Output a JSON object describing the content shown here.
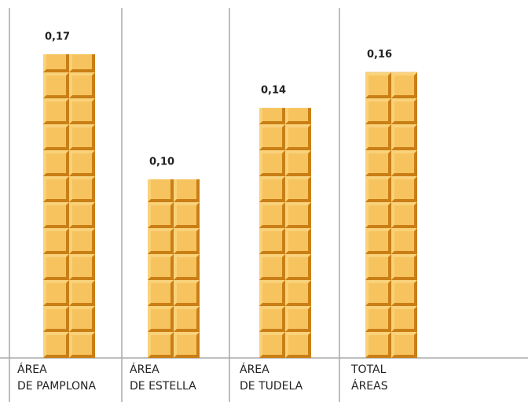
{
  "chart_data": {
    "type": "bar",
    "categories": [
      "ÁREA DE PAMPLONA",
      "ÁREA DE ESTELLA",
      "ÁREA DE TUDELA",
      "TOTAL ÁREAS"
    ],
    "values": [
      0.17,
      0.1,
      0.14,
      0.16
    ],
    "value_labels": [
      "0,17",
      "0,10",
      "0,14",
      "0,16"
    ],
    "color": "#f0a733"
  }
}
